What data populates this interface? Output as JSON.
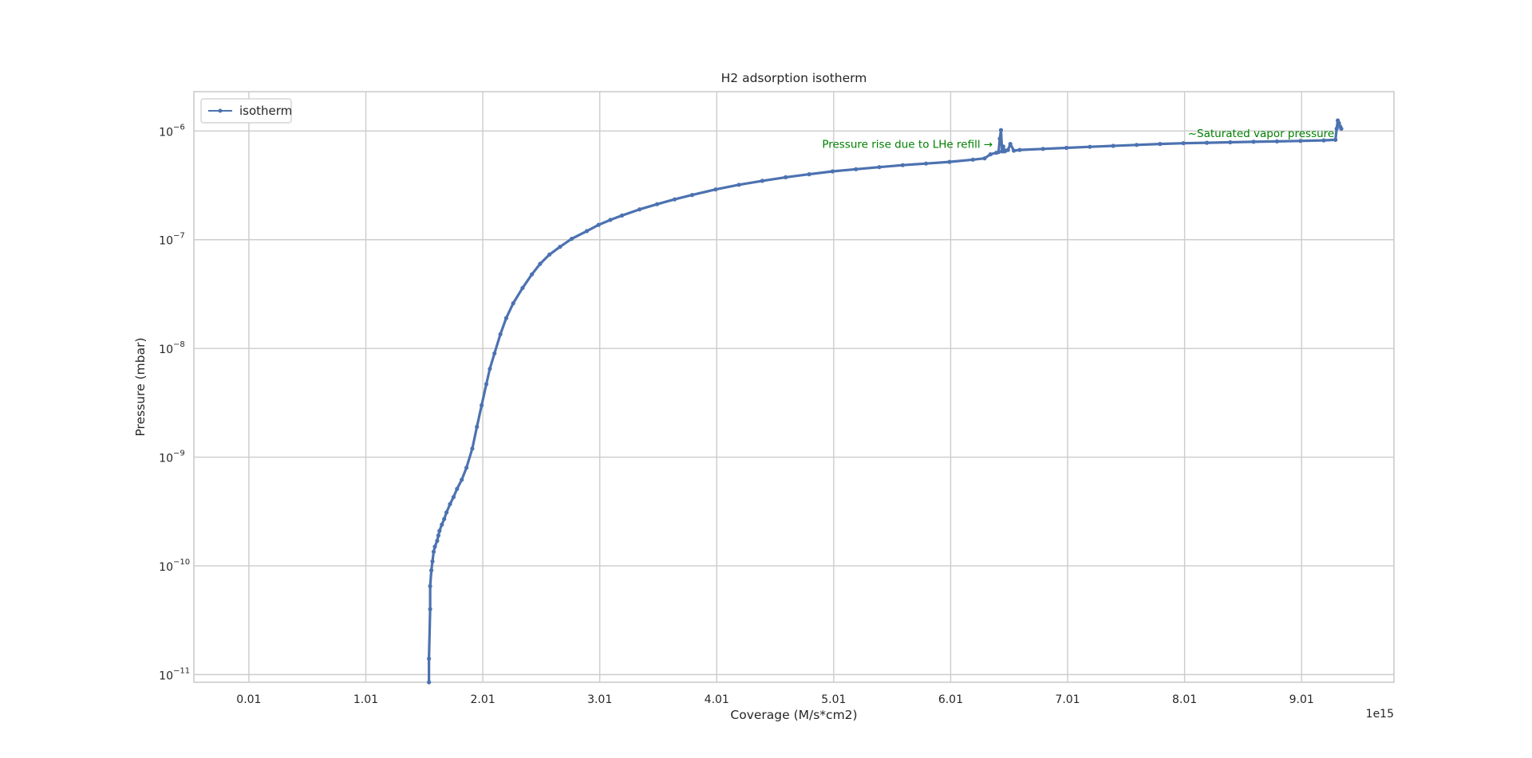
{
  "chart_data": {
    "type": "line",
    "title": "H2 adsorption isotherm",
    "xlabel": "Coverage (M/s*cm2)",
    "ylabel": "Pressure (mbar)",
    "x_offset_text": "1e15",
    "yscale": "log",
    "xlim": [
      -0.46,
      9.8
    ],
    "ylim": [
      8.5e-12,
      2.3e-06
    ],
    "x_ticks": [
      0.01,
      1.01,
      2.01,
      3.01,
      4.01,
      5.01,
      6.01,
      7.01,
      8.01,
      9.01
    ],
    "x_tick_labels": [
      "0.01",
      "1.01",
      "2.01",
      "3.01",
      "4.01",
      "5.01",
      "6.01",
      "7.01",
      "8.01",
      "9.01"
    ],
    "y_ticks": [
      1e-11,
      1e-10,
      1e-09,
      1e-08,
      1e-07,
      1e-06
    ],
    "y_tick_labels": [
      {
        "base": "10",
        "exp": "−11"
      },
      {
        "base": "10",
        "exp": "−10"
      },
      {
        "base": "10",
        "exp": "−9"
      },
      {
        "base": "10",
        "exp": "−8"
      },
      {
        "base": "10",
        "exp": "−7"
      },
      {
        "base": "10",
        "exp": "−6"
      }
    ],
    "grid": true,
    "legend_position": "upper-left",
    "series": [
      {
        "name": "isotherm",
        "color": "#4c72b0",
        "marker": "point",
        "x": [
          1.55,
          1.55,
          1.56,
          1.56,
          1.57,
          1.58,
          1.59,
          1.6,
          1.62,
          1.63,
          1.64,
          1.66,
          1.68,
          1.7,
          1.73,
          1.76,
          1.79,
          1.83,
          1.87,
          1.92,
          1.96,
          2.0,
          2.04,
          2.07,
          2.11,
          2.16,
          2.21,
          2.27,
          2.35,
          2.43,
          2.5,
          2.58,
          2.67,
          2.77,
          2.9,
          3.0,
          3.1,
          3.2,
          3.35,
          3.5,
          3.65,
          3.8,
          4.0,
          4.2,
          4.4,
          4.6,
          4.8,
          5.0,
          5.2,
          5.4,
          5.6,
          5.8,
          6.0,
          6.2,
          6.3,
          6.35,
          6.4,
          6.42,
          6.43,
          6.44,
          6.45,
          6.46,
          6.47,
          6.48,
          6.5,
          6.52,
          6.55,
          6.6,
          6.8,
          7.0,
          7.2,
          7.4,
          7.6,
          7.8,
          8.0,
          8.2,
          8.4,
          8.6,
          8.8,
          9.0,
          9.2,
          9.3,
          9.31,
          9.32,
          9.33,
          9.34,
          9.35
        ],
        "y": [
          8.5e-12,
          1.4e-11,
          4e-11,
          6.5e-11,
          9.1e-11,
          1.1e-10,
          1.35e-10,
          1.5e-10,
          1.7e-10,
          1.9e-10,
          2.1e-10,
          2.4e-10,
          2.7e-10,
          3.1e-10,
          3.7e-10,
          4.3e-10,
          5.1e-10,
          6.2e-10,
          8e-10,
          1.2e-09,
          1.9e-09,
          3e-09,
          4.7e-09,
          6.5e-09,
          9e-09,
          1.35e-08,
          1.9e-08,
          2.6e-08,
          3.6e-08,
          4.8e-08,
          6e-08,
          7.3e-08,
          8.6e-08,
          1.02e-07,
          1.2e-07,
          1.37e-07,
          1.52e-07,
          1.67e-07,
          1.9e-07,
          2.12e-07,
          2.35e-07,
          2.58e-07,
          2.9e-07,
          3.2e-07,
          3.48e-07,
          3.75e-07,
          4e-07,
          4.25e-07,
          4.45e-07,
          4.65e-07,
          4.85e-07,
          5.02e-07,
          5.2e-07,
          5.45e-07,
          5.6e-07,
          6.1e-07,
          6.3e-07,
          6.4e-07,
          8.5e-07,
          1.02e-06,
          6.5e-07,
          7.2e-07,
          6.5e-07,
          6.6e-07,
          6.7e-07,
          7.6e-07,
          6.6e-07,
          6.7e-07,
          6.85e-07,
          7e-07,
          7.15e-07,
          7.3e-07,
          7.45e-07,
          7.6e-07,
          7.72e-07,
          7.8e-07,
          7.88e-07,
          7.95e-07,
          8.02e-07,
          8.1e-07,
          8.2e-07,
          8.3e-07,
          1.05e-06,
          1.25e-06,
          1.18e-06,
          1.1e-06,
          1.05e-06
        ]
      }
    ],
    "annotations": [
      {
        "text": "Pressure rise due to LHe refill →",
        "x": 6.37,
        "y": 7.6e-07,
        "anchor": "end"
      },
      {
        "text": "~Saturated vapor pressure",
        "x": 9.29,
        "y": 9.6e-07,
        "anchor": "end"
      }
    ]
  }
}
